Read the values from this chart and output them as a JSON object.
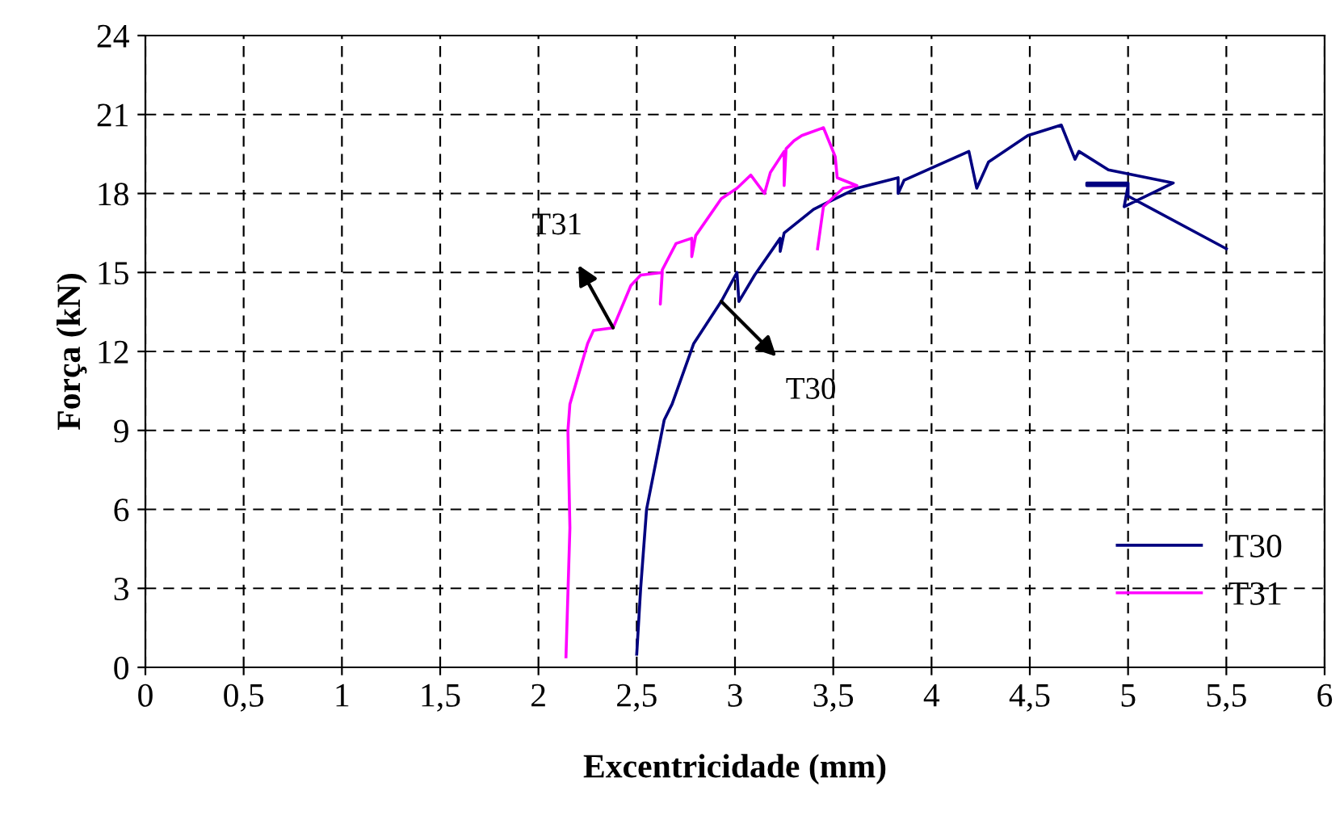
{
  "chart_data": {
    "type": "line",
    "xlabel": "Excentricidade (mm)",
    "ylabel": "Força (kN)",
    "xlim": [
      0,
      6
    ],
    "ylim": [
      0,
      24
    ],
    "xticks": [
      0,
      {
        "value": 0.5,
        "label": "0,5"
      },
      1,
      {
        "value": 1.5,
        "label": "1,5"
      },
      2,
      {
        "value": 2.5,
        "label": "2,5"
      },
      3,
      {
        "value": 3.5,
        "label": "3,5"
      },
      4,
      {
        "value": 4.5,
        "label": "4,5"
      },
      5,
      {
        "value": 5.5,
        "label": "5,5"
      },
      6
    ],
    "yticks": [
      0,
      3,
      6,
      9,
      12,
      15,
      18,
      21,
      24
    ],
    "grid": true,
    "legend": "bottom right",
    "line_style": "solid",
    "marker": "none",
    "series": [
      {
        "name": "T30",
        "color": "#000080",
        "x": [
          2.5,
          2.52,
          2.55,
          2.64,
          2.68,
          2.79,
          2.93,
          3.01,
          3.02,
          3.1,
          3.23,
          3.23,
          3.25,
          3.4,
          3.62,
          3.83,
          3.83,
          3.86,
          4.01,
          4.19,
          4.23,
          4.29,
          4.49,
          4.66,
          4.73,
          4.75,
          4.9,
          5.23,
          4.98,
          5.0,
          4.79,
          4.79,
          5.0,
          5.0,
          5.5
        ],
        "values": [
          0.5,
          3,
          6,
          9.4,
          10,
          12.3,
          13.9,
          15.0,
          13.9,
          14.9,
          16.3,
          15.8,
          16.5,
          17.4,
          18.2,
          18.6,
          18.0,
          18.5,
          19.0,
          19.6,
          18.2,
          19.2,
          20.2,
          20.6,
          19.3,
          19.6,
          18.9,
          18.4,
          17.5,
          18.3,
          18.3,
          18.4,
          18.4,
          17.9,
          15.9
        ]
      },
      {
        "name": "T31",
        "color": "#ff00ff",
        "x": [
          2.14,
          2.16,
          2.15,
          2.16,
          2.25,
          2.28,
          2.38,
          2.47,
          2.52,
          2.63,
          2.62,
          2.63,
          2.7,
          2.78,
          2.78,
          2.8,
          2.93,
          3.01,
          3.08,
          3.15,
          3.18,
          3.25,
          3.25,
          3.26,
          3.3,
          3.34,
          3.45,
          3.51,
          3.52,
          3.62,
          3.55,
          3.45,
          3.42
        ],
        "values": [
          0.4,
          5.3,
          9.0,
          10.0,
          12.3,
          12.8,
          12.9,
          14.5,
          14.9,
          15.0,
          13.8,
          15.1,
          16.1,
          16.3,
          15.6,
          16.4,
          17.8,
          18.2,
          18.7,
          18.0,
          18.8,
          19.6,
          18.3,
          19.7,
          20.0,
          20.2,
          20.5,
          19.4,
          18.6,
          18.3,
          18.2,
          17.5,
          15.9
        ]
      }
    ],
    "annotations": [
      {
        "text": "T31",
        "x": 2.38,
        "y": 12.9
      },
      {
        "text": "T30",
        "x": 2.93,
        "y": 13.9
      }
    ]
  }
}
